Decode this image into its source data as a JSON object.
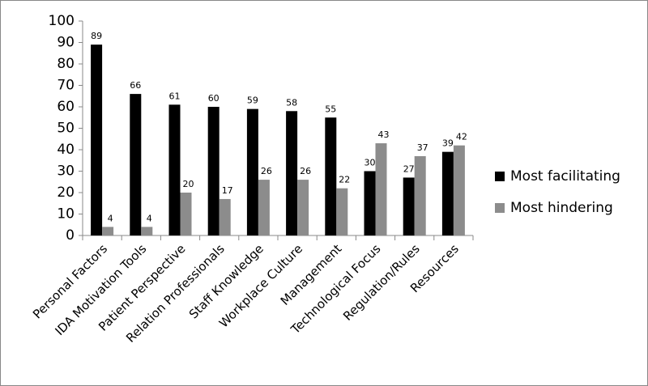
{
  "chart_data": {
    "type": "bar",
    "categories": [
      "Personal Factors",
      "IDA Motivation Tools",
      "Patient Perspective",
      "Relation Professionals",
      "Staff Knowledge",
      "Workplace Culture",
      "Management",
      "Technological Focus",
      "Regulation/Rules",
      "Resources"
    ],
    "series": [
      {
        "name": "Most facilitating",
        "color": "#000000",
        "values": [
          89,
          66,
          61,
          60,
          59,
          58,
          55,
          30,
          27,
          39
        ]
      },
      {
        "name": "Most hindering",
        "color": "#8c8c8c",
        "values": [
          4,
          4,
          20,
          17,
          26,
          26,
          22,
          43,
          37,
          42
        ]
      }
    ],
    "ylim": [
      0,
      100
    ],
    "yticks": [
      0,
      10,
      20,
      30,
      40,
      50,
      60,
      70,
      80,
      90,
      100
    ],
    "grid": false,
    "legend": "right",
    "data_labels": true
  }
}
